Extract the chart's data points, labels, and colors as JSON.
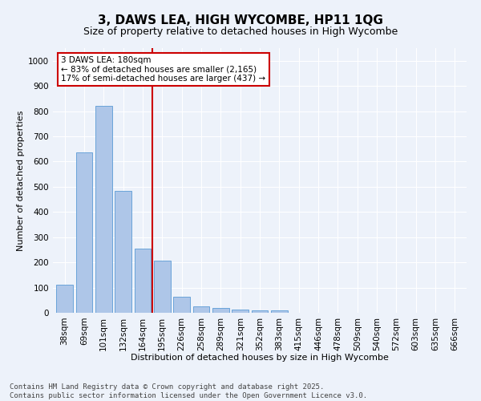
{
  "title": "3, DAWS LEA, HIGH WYCOMBE, HP11 1QG",
  "subtitle": "Size of property relative to detached houses in High Wycombe",
  "xlabel": "Distribution of detached houses by size in High Wycombe",
  "ylabel": "Number of detached properties",
  "categories": [
    "38sqm",
    "69sqm",
    "101sqm",
    "132sqm",
    "164sqm",
    "195sqm",
    "226sqm",
    "258sqm",
    "289sqm",
    "321sqm",
    "352sqm",
    "383sqm",
    "415sqm",
    "446sqm",
    "478sqm",
    "509sqm",
    "540sqm",
    "572sqm",
    "603sqm",
    "635sqm",
    "666sqm"
  ],
  "values": [
    110,
    635,
    820,
    483,
    255,
    207,
    65,
    27,
    20,
    13,
    10,
    8,
    0,
    0,
    0,
    0,
    0,
    0,
    0,
    0,
    0
  ],
  "bar_color": "#aec6e8",
  "bar_edge_color": "#5b9bd5",
  "vline_x": 4.5,
  "vline_color": "#cc0000",
  "annotation_text": "3 DAWS LEA: 180sqm\n← 83% of detached houses are smaller (2,165)\n17% of semi-detached houses are larger (437) →",
  "box_color": "#ffffff",
  "box_edge_color": "#cc0000",
  "ylim": [
    0,
    1050
  ],
  "yticks": [
    0,
    100,
    200,
    300,
    400,
    500,
    600,
    700,
    800,
    900,
    1000
  ],
  "footer": "Contains HM Land Registry data © Crown copyright and database right 2025.\nContains public sector information licensed under the Open Government Licence v3.0.",
  "title_fontsize": 11,
  "subtitle_fontsize": 9,
  "axis_label_fontsize": 8,
  "tick_fontsize": 7.5,
  "footer_fontsize": 6.5,
  "annotation_fontsize": 7.5,
  "background_color": "#edf2fa",
  "plot_bg_color": "#edf2fa",
  "grid_color": "#ffffff"
}
